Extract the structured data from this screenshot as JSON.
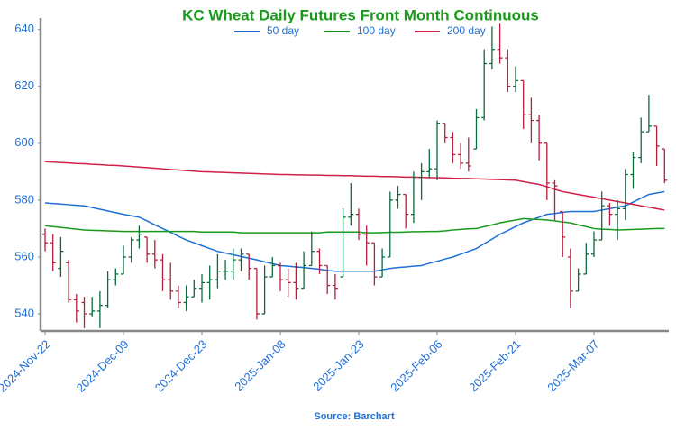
{
  "chart_data": {
    "type": "ohlc",
    "title": "KC Wheat Daily Futures Front Month Continuous",
    "source": "Source: Barchart",
    "up_color": "#0b6b3c",
    "down_color": "#b3203c",
    "ylim": [
      534,
      644
    ],
    "yticks": [
      540,
      560,
      580,
      600,
      620,
      640
    ],
    "categories": [
      "2024-Nov-22",
      null,
      null,
      null,
      null,
      null,
      null,
      null,
      null,
      null,
      "2024-Dec-09",
      null,
      null,
      null,
      null,
      null,
      null,
      null,
      null,
      null,
      "2024-Dec-23",
      null,
      null,
      null,
      null,
      null,
      null,
      null,
      null,
      null,
      "2025-Jan-08",
      null,
      null,
      null,
      null,
      null,
      null,
      null,
      null,
      null,
      "2025-Jan-23",
      null,
      null,
      null,
      null,
      null,
      null,
      null,
      null,
      null,
      "2025-Feb-06",
      null,
      null,
      null,
      null,
      null,
      null,
      null,
      null,
      null,
      "2025-Feb-21",
      null,
      null,
      null,
      null,
      null,
      null,
      null,
      null,
      null,
      "2025-Mar-07",
      null,
      null,
      null,
      null,
      null,
      null,
      null,
      null,
      null
    ],
    "open": [
      568,
      565,
      556,
      558,
      545,
      544,
      540,
      541,
      543,
      552,
      554,
      560,
      566,
      567,
      561,
      559,
      552,
      548,
      544,
      546,
      549,
      551,
      552,
      555,
      555,
      559,
      561,
      556,
      540,
      553,
      557,
      552,
      551,
      549,
      557,
      562,
      557,
      550,
      553,
      574,
      575,
      568,
      565,
      553,
      560,
      580,
      582,
      575,
      588,
      590,
      591,
      607,
      602,
      596,
      593,
      598,
      609,
      628,
      633,
      630,
      620,
      622,
      610,
      608,
      600,
      586,
      576,
      560,
      548,
      554,
      561,
      566,
      578,
      575,
      577,
      589,
      595,
      604,
      606,
      598
    ],
    "high": [
      570,
      568,
      567,
      559,
      547,
      546,
      546,
      548,
      555,
      556,
      564,
      567,
      571,
      567,
      566,
      561,
      558,
      550,
      550,
      552,
      554,
      557,
      561,
      559,
      563,
      563,
      561,
      556,
      557,
      560,
      558,
      556,
      558,
      562,
      569,
      563,
      557,
      554,
      577,
      586,
      577,
      571,
      565,
      563,
      583,
      585,
      582,
      590,
      593,
      598,
      608,
      607,
      604,
      600,
      602,
      612,
      633,
      641,
      642,
      633,
      627,
      622,
      616,
      610,
      600,
      587,
      576,
      563,
      556,
      565,
      569,
      583,
      579,
      580,
      591,
      597,
      609,
      617,
      606,
      598
    ],
    "low": [
      562,
      555,
      553,
      544,
      537,
      535,
      539,
      535,
      542,
      550,
      554,
      558,
      563,
      558,
      556,
      548,
      545,
      542,
      541,
      546,
      544,
      545,
      549,
      552,
      552,
      555,
      552,
      538,
      540,
      553,
      548,
      546,
      545,
      549,
      557,
      554,
      547,
      545,
      553,
      571,
      566,
      557,
      550,
      553,
      560,
      577,
      570,
      572,
      580,
      588,
      587,
      600,
      593,
      591,
      590,
      598,
      608,
      626,
      628,
      618,
      618,
      605,
      600,
      594,
      580,
      573,
      560,
      542,
      548,
      554,
      560,
      566,
      571,
      566,
      573,
      584,
      593,
      604,
      592,
      586
    ],
    "close": [
      565,
      558,
      562,
      545,
      541,
      540,
      541,
      543,
      552,
      554,
      560,
      566,
      568,
      561,
      559,
      552,
      548,
      544,
      546,
      549,
      551,
      552,
      555,
      555,
      559,
      561,
      556,
      540,
      553,
      557,
      552,
      551,
      549,
      557,
      562,
      557,
      550,
      549,
      574,
      575,
      568,
      565,
      553,
      560,
      580,
      582,
      575,
      588,
      590,
      591,
      607,
      602,
      596,
      593,
      592,
      609,
      628,
      633,
      630,
      620,
      622,
      610,
      608,
      600,
      586,
      585,
      567,
      548,
      554,
      561,
      566,
      578,
      575,
      577,
      589,
      595,
      604,
      606,
      599,
      587
    ],
    "series": [
      {
        "name": "50 day",
        "color": "#1f6fd6",
        "values": [
          579,
          578.8,
          578.6,
          578.4,
          578.2,
          578,
          577.4,
          576.8,
          576.2,
          575.6,
          575,
          574.5,
          574,
          572.7,
          571.3,
          570,
          568.7,
          567.3,
          566,
          565,
          564,
          563,
          562,
          561.4,
          560.8,
          560.2,
          559.6,
          559,
          558.3,
          557.7,
          557,
          556.8,
          556.5,
          556.3,
          556,
          555.7,
          555.3,
          555,
          555,
          555,
          555,
          555,
          555,
          555.5,
          556,
          556.3,
          556.5,
          556.8,
          557,
          557.8,
          558.5,
          559.3,
          560,
          561,
          562,
          563,
          564.7,
          566.3,
          568,
          569.3,
          570.7,
          572,
          573,
          574,
          575,
          575.3,
          575.7,
          576,
          576,
          576,
          576,
          576.5,
          577,
          577.5,
          578,
          579.3,
          580.7,
          582,
          582.5,
          583
        ]
      },
      {
        "name": "100 day",
        "color": "#1a9a1a",
        "values": [
          571,
          570.7,
          570.4,
          570.1,
          569.8,
          569.5,
          569.4,
          569.3,
          569.2,
          569.1,
          569,
          569,
          569,
          569,
          569,
          569,
          569,
          569,
          569,
          569,
          568.8,
          568.8,
          568.8,
          568.8,
          568.8,
          568.5,
          568.5,
          568.5,
          568.5,
          568.5,
          568.5,
          568.5,
          568.5,
          568.5,
          568.5,
          568.5,
          568.8,
          568.8,
          568.8,
          568.8,
          568.8,
          568.5,
          568.5,
          568.6,
          568.7,
          568.7,
          568.8,
          568.9,
          568.9,
          569,
          569,
          569.2,
          569.5,
          569.7,
          569.9,
          570,
          570.7,
          571.3,
          572,
          572.5,
          573,
          573.5,
          573.3,
          573.2,
          573,
          572.7,
          572.3,
          572,
          571.3,
          570.7,
          570,
          569.8,
          569.7,
          569.5,
          569.6,
          569.7,
          569.8,
          569.9,
          570,
          570
        ]
      },
      {
        "name": "200 day",
        "color": "#d0204a",
        "values": [
          593.5,
          593.4,
          593.2,
          593.1,
          592.9,
          592.8,
          592.6,
          592.5,
          592.3,
          592.2,
          592,
          591.8,
          591.6,
          591.4,
          591.2,
          591,
          590.8,
          590.6,
          590.4,
          590.2,
          590,
          589.9,
          589.8,
          589.7,
          589.6,
          589.5,
          589.4,
          589.3,
          589.2,
          589.1,
          589,
          589,
          588.9,
          588.9,
          588.8,
          588.8,
          588.7,
          588.7,
          588.6,
          588.6,
          588.5,
          588.4,
          588.4,
          588.3,
          588.3,
          588.2,
          588.1,
          588.1,
          588,
          587.9,
          587.9,
          587.8,
          587.7,
          587.6,
          587.6,
          587.5,
          587.4,
          587.3,
          587.2,
          587.1,
          587,
          586.5,
          586,
          585.5,
          584.7,
          583.8,
          583,
          582.5,
          582,
          581.5,
          581,
          580.5,
          580,
          579.5,
          579,
          578.5,
          578,
          577.5,
          577,
          576.5
        ]
      }
    ]
  }
}
